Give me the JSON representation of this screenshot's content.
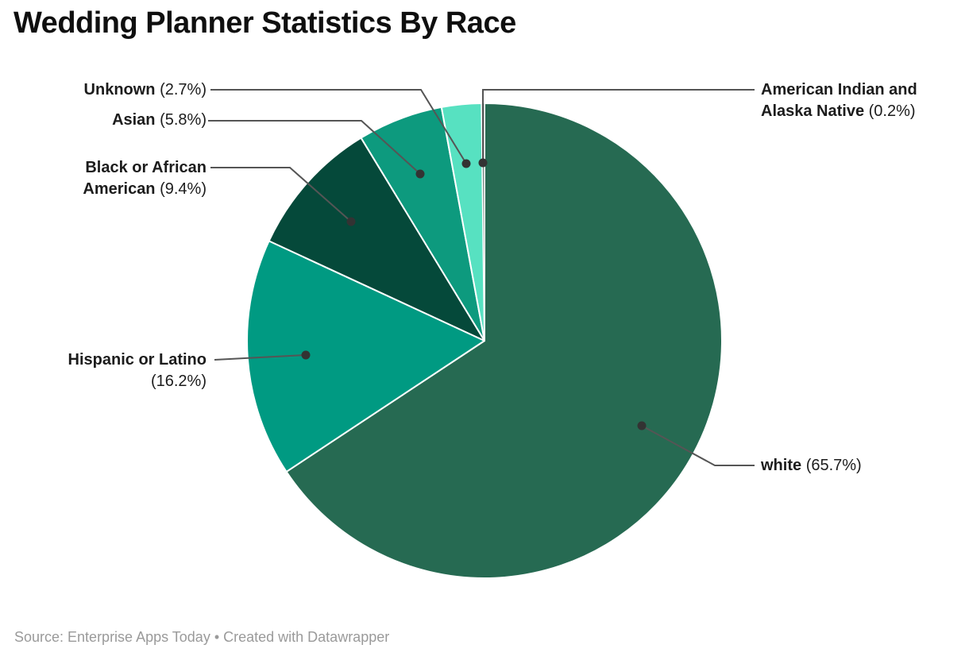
{
  "title": "Wedding Planner Statistics By Race",
  "footer": {
    "text": "Source: Enterprise Apps Today • Created with Datawrapper"
  },
  "chart_data": {
    "type": "pie",
    "title": "Wedding Planner Statistics By Race",
    "direction": "clockwise",
    "start_angle_deg": 0,
    "legend_position": "outside-callout-labels",
    "source": "Enterprise Apps Today",
    "created_with": "Datawrapper",
    "slices": [
      {
        "label": "white",
        "value": 65.7,
        "display": "(65.7%)",
        "color": "#266a52"
      },
      {
        "label": "Hispanic or Latino",
        "value": 16.2,
        "display": "(16.2%)",
        "color": "#009a82"
      },
      {
        "label": "Black or African American",
        "value": 9.4,
        "display": "(9.4%)",
        "color": "#05493a"
      },
      {
        "label": "Asian",
        "value": 5.8,
        "display": "(5.8%)",
        "color": "#0d9a7e"
      },
      {
        "label": "Unknown",
        "value": 2.7,
        "display": "(2.7%)",
        "color": "#57e1c1"
      },
      {
        "label": "American Indian and Alaska Native",
        "value": 0.2,
        "display": "(0.2%)",
        "color": "#7f938c"
      }
    ]
  },
  "colors": {
    "background": "#ffffff",
    "title_text": "#0f0f0f",
    "label_text": "#1c1c1c",
    "footer_text": "#9a9a9a",
    "leader_line": "#555555",
    "leader_dot": "#333333",
    "slice_separator": "#ffffff"
  }
}
